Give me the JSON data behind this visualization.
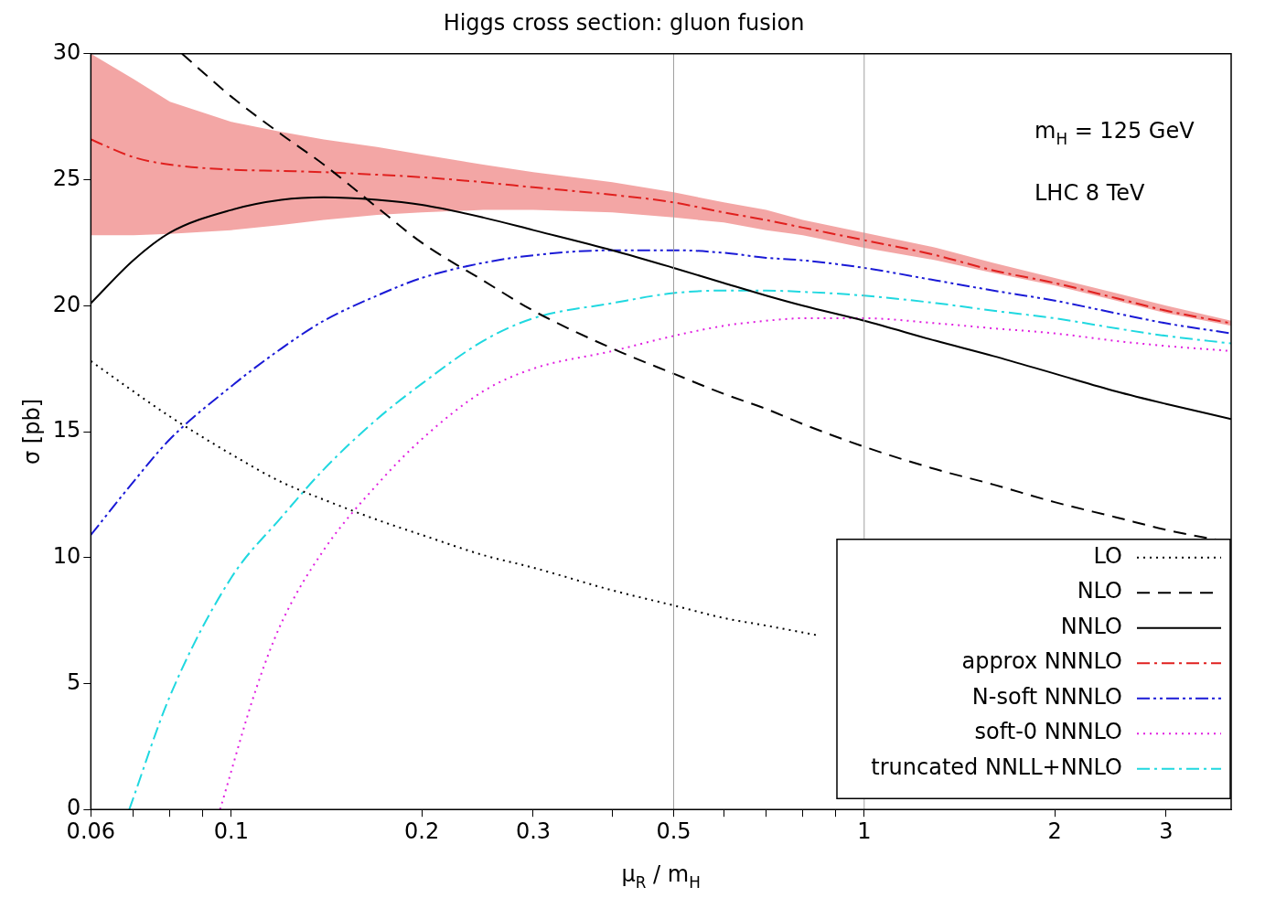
{
  "chart_data": {
    "type": "line",
    "title": "Higgs cross section: gluon fusion",
    "xlabel": "μ$_{R}$ / m$_{H}$",
    "ylabel": "σ [pb]",
    "log": "x",
    "xlim": [
      0.06,
      3.8
    ],
    "ylim": [
      0,
      30
    ],
    "xticks": [
      0.06,
      {
        "value": 0.07,
        "label": null
      },
      {
        "value": 0.08,
        "label": null
      },
      {
        "value": 0.09,
        "label": null
      },
      0.1,
      0.2,
      0.3,
      {
        "value": 0.4,
        "label": null
      },
      0.5,
      {
        "value": 0.6,
        "label": null
      },
      {
        "value": 0.7,
        "label": null
      },
      {
        "value": 0.8,
        "label": null
      },
      {
        "value": 0.9,
        "label": null
      },
      1,
      2,
      3
    ],
    "yticks": [
      0,
      5,
      10,
      15,
      20,
      25,
      30
    ],
    "grid": false,
    "legend": "bottom right",
    "ref_lines": [
      {
        "axis": "x",
        "value": 0.5,
        "color": "#a0a0a0"
      },
      {
        "axis": "x",
        "value": 1,
        "color": "#a0a0a0"
      }
    ],
    "annotations": [
      "m$_{H}$ = 125 GeV",
      "LHC 8 TeV"
    ],
    "series": [
      {
        "name": "LO",
        "color": "#000000",
        "line_style": "dotted",
        "x": [
          0.06,
          0.07,
          0.08,
          0.1,
          0.12,
          0.14,
          0.17,
          0.2,
          0.25,
          0.3,
          0.4,
          0.5,
          0.6,
          0.7,
          0.85
        ],
        "values": [
          17.8,
          16.6,
          15.6,
          14.1,
          13.0,
          12.3,
          11.5,
          10.9,
          10.1,
          9.6,
          8.7,
          8.1,
          7.6,
          7.3,
          6.9
        ]
      },
      {
        "name": "NLO",
        "color": "#000000",
        "line_style": "dashed",
        "x": [
          0.0836,
          0.1,
          0.12,
          0.14,
          0.17,
          0.2,
          0.25,
          0.3,
          0.4,
          0.5,
          0.6,
          0.7,
          0.8,
          1,
          1.3,
          1.6,
          2,
          2.5,
          3,
          3.8
        ],
        "values": [
          30,
          28.3,
          26.8,
          25.6,
          23.9,
          22.5,
          21.0,
          19.8,
          18.3,
          17.3,
          16.5,
          15.9,
          15.3,
          14.4,
          13.5,
          12.9,
          12.2,
          11.6,
          11.1,
          10.6
        ]
      },
      {
        "name": "NNLO",
        "color": "#000000",
        "line_style": "solid",
        "x": [
          0.06,
          0.07,
          0.08,
          0.1,
          0.12,
          0.14,
          0.17,
          0.2,
          0.25,
          0.3,
          0.4,
          0.5,
          0.6,
          0.7,
          0.8,
          1,
          1.3,
          1.6,
          2,
          2.5,
          3,
          3.8
        ],
        "values": [
          20.1,
          21.8,
          22.9,
          23.8,
          24.2,
          24.3,
          24.2,
          24.0,
          23.5,
          23.0,
          22.2,
          21.5,
          20.9,
          20.4,
          20.0,
          19.4,
          18.6,
          18.0,
          17.3,
          16.6,
          16.1,
          15.5
        ]
      },
      {
        "name": "approx NNNLO",
        "color": "#e0201f",
        "line_style": "dashdot",
        "x": [
          0.06,
          0.07,
          0.08,
          0.1,
          0.12,
          0.14,
          0.17,
          0.2,
          0.25,
          0.3,
          0.4,
          0.5,
          0.6,
          0.7,
          0.8,
          1,
          1.3,
          1.6,
          2,
          2.5,
          3,
          3.8
        ],
        "values": [
          26.6,
          25.9,
          25.6,
          25.4,
          25.35,
          25.3,
          25.2,
          25.1,
          24.9,
          24.7,
          24.4,
          24.1,
          23.7,
          23.4,
          23.1,
          22.6,
          22.0,
          21.4,
          20.9,
          20.3,
          19.8,
          19.3
        ],
        "lower": [
          22.8,
          22.8,
          22.85,
          23.0,
          23.2,
          23.4,
          23.6,
          23.7,
          23.8,
          23.8,
          23.7,
          23.5,
          23.3,
          23.0,
          22.8,
          22.3,
          21.8,
          21.3,
          20.8,
          20.2,
          19.7,
          19.2
        ],
        "upper": [
          30,
          29.0,
          28.1,
          27.3,
          26.9,
          26.6,
          26.3,
          26.0,
          25.6,
          25.3,
          24.9,
          24.5,
          24.1,
          23.8,
          23.4,
          22.9,
          22.3,
          21.7,
          21.1,
          20.5,
          20.0,
          19.4
        ]
      },
      {
        "name": "N-soft NNNLO",
        "color": "#1a1ad6",
        "line_style": "dashdotdot",
        "x": [
          0.06,
          0.07,
          0.08,
          0.1,
          0.12,
          0.14,
          0.17,
          0.2,
          0.25,
          0.3,
          0.4,
          0.5,
          0.6,
          0.7,
          0.8,
          1,
          1.3,
          1.6,
          2,
          2.5,
          3,
          3.8
        ],
        "values": [
          10.9,
          13.0,
          14.7,
          16.8,
          18.3,
          19.4,
          20.4,
          21.1,
          21.7,
          22.0,
          22.2,
          22.2,
          22.1,
          21.9,
          21.8,
          21.5,
          21.0,
          20.6,
          20.2,
          19.7,
          19.3,
          18.9
        ]
      },
      {
        "name": "soft-0 NNNLO",
        "color": "#e020e0",
        "line_style": "dotted",
        "x": [
          0.096,
          0.1095,
          0.12,
          0.14,
          0.17,
          0.2,
          0.25,
          0.3,
          0.4,
          0.5,
          0.6,
          0.7,
          0.8,
          1,
          1.3,
          1.6,
          2,
          2.5,
          3,
          3.8
        ],
        "values": [
          0,
          4.8,
          7.4,
          10.3,
          12.9,
          14.7,
          16.6,
          17.5,
          18.2,
          18.8,
          19.2,
          19.4,
          19.5,
          19.5,
          19.3,
          19.1,
          18.9,
          18.6,
          18.4,
          18.2
        ]
      },
      {
        "name": "truncated NNLL+NNLO",
        "color": "#20d8e0",
        "line_style": "dashdot",
        "x": [
          0.069,
          0.08,
          0.1,
          0.12,
          0.14,
          0.17,
          0.2,
          0.25,
          0.3,
          0.4,
          0.5,
          0.6,
          0.7,
          0.8,
          1,
          1.3,
          1.6,
          2,
          2.5,
          3,
          3.8
        ],
        "values": [
          0,
          4.5,
          9.2,
          11.6,
          13.5,
          15.5,
          16.9,
          18.6,
          19.5,
          20.1,
          20.5,
          20.6,
          20.6,
          20.55,
          20.4,
          20.1,
          19.8,
          19.5,
          19.1,
          18.8,
          18.5
        ]
      }
    ]
  }
}
